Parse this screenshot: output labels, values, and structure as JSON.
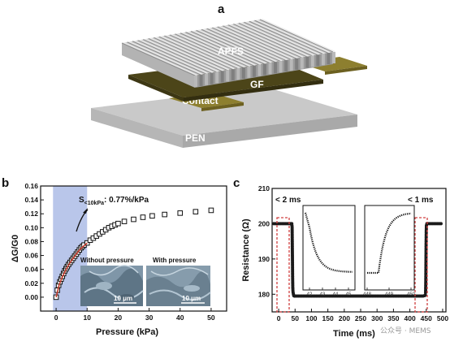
{
  "panel_a": {
    "letter": "a",
    "layers": {
      "apfs": "APFS",
      "gf": "GF",
      "contact": "Contact",
      "pen": "PEN"
    },
    "colors": {
      "apfs": "#c4c4c4",
      "gf": "#4a4418",
      "contact": "#8a7d2e",
      "pen": "#bdbdbd"
    }
  },
  "panel_b": {
    "letter": "b",
    "annotation": "S<10kPa: 0.77%/kPa",
    "annotation_main": "S",
    "annotation_sub": "<10kPa",
    "annotation_value": ": 0.77%/kPa",
    "inset_left_caption": "Without pressure",
    "inset_right_caption": "With pressure",
    "scale_bar_left": "10 μm",
    "scale_bar_right": "10 μm",
    "shade_color": "#b9c6ea",
    "fit_color": "#c0392b"
  },
  "panel_c": {
    "letter": "c",
    "label_left": "< 2 ms",
    "label_right": "< 1 ms",
    "inset_left_ticks": [
      "42",
      "43",
      "44",
      "45"
    ],
    "inset_right_ticks": [
      "448",
      "449",
      "450"
    ],
    "box_color": "#d04040"
  },
  "watermark": "公众号 · MEMS",
  "chart_data": [
    {
      "type": "scatter",
      "title": "",
      "xlabel": "Pressure (kPa)",
      "ylabel": "ΔG/G0",
      "xlim": [
        -5,
        55
      ],
      "ylim": [
        -0.02,
        0.16
      ],
      "xticks": [
        "0",
        "10",
        "20",
        "30",
        "40",
        "50"
      ],
      "yticks": [
        "0.00",
        "0.02",
        "0.04",
        "0.06",
        "0.08",
        "0.10",
        "0.12",
        "0.14",
        "0.16"
      ],
      "series": [
        {
          "x": [
            0,
            0.4,
            0.8,
            1.2,
            1.6,
            2.0,
            2.4,
            2.8,
            3.2,
            3.6,
            4.0,
            4.5,
            5.0,
            5.5,
            6.0,
            6.5,
            7.0,
            7.5,
            8.0,
            8.5,
            9.0,
            10,
            11,
            12,
            13,
            14,
            15,
            16,
            17,
            18,
            19,
            20,
            22,
            25,
            28,
            31,
            35,
            40,
            45,
            50
          ],
          "y": [
            0.0,
            0.01,
            0.017,
            0.022,
            0.026,
            0.03,
            0.034,
            0.038,
            0.041,
            0.044,
            0.047,
            0.05,
            0.053,
            0.056,
            0.059,
            0.062,
            0.065,
            0.068,
            0.071,
            0.073,
            0.075,
            0.078,
            0.082,
            0.085,
            0.088,
            0.091,
            0.094,
            0.097,
            0.1,
            0.102,
            0.104,
            0.106,
            0.109,
            0.112,
            0.115,
            0.117,
            0.119,
            0.121,
            0.123,
            0.125
          ]
        }
      ],
      "fit": {
        "x": [
          0,
          1,
          2,
          3,
          4,
          5,
          6,
          7,
          8,
          9,
          10
        ],
        "y": [
          0.0,
          0.018,
          0.029,
          0.038,
          0.046,
          0.053,
          0.059,
          0.065,
          0.07,
          0.074,
          0.078
        ]
      },
      "shaded_x_range": [
        -1,
        10
      ],
      "grid": false
    },
    {
      "type": "scatter",
      "title": "",
      "xlabel": "Time (ms)",
      "ylabel": "Resistance (Ω)",
      "xlim": [
        -20,
        510
      ],
      "ylim": [
        175,
        210
      ],
      "xticks": [
        "0",
        "50",
        "100",
        "150",
        "200",
        "250",
        "300",
        "350",
        "400",
        "450",
        "500"
      ],
      "yticks": [
        "180",
        "190",
        "200",
        "210"
      ],
      "series": [
        {
          "x": [
            -15,
            -10,
            -5,
            0,
            5,
            10,
            15,
            20,
            25,
            30,
            35,
            38,
            40,
            41,
            42,
            42.5,
            43,
            43.5,
            44,
            45,
            46,
            48,
            50,
            60,
            70,
            80,
            90,
            100,
            120,
            140,
            160,
            180,
            200,
            220,
            240,
            260,
            280,
            300,
            320,
            340,
            360,
            380,
            400,
            420,
            440,
            445,
            447,
            448,
            448.5,
            449,
            449.5,
            450,
            450.5,
            452,
            455,
            460,
            465,
            470,
            480,
            490,
            500
          ],
          "y": [
            200,
            200,
            200,
            200,
            200,
            200,
            200,
            200,
            200,
            200,
            200,
            200,
            200,
            199,
            190,
            185,
            182,
            181,
            180.5,
            180,
            179.6,
            179.5,
            179.5,
            179.5,
            179.5,
            179.5,
            179.5,
            179.5,
            179.5,
            179.5,
            179.5,
            179.5,
            179.5,
            179.5,
            179.5,
            179.5,
            179.5,
            179.5,
            179.5,
            179.5,
            179.5,
            179.5,
            179.5,
            179.5,
            179.5,
            179.6,
            179.8,
            180.5,
            183,
            188,
            194,
            198,
            199.5,
            200,
            200,
            200,
            200,
            200,
            200,
            200,
            200
          ]
        }
      ],
      "grid": false
    }
  ]
}
